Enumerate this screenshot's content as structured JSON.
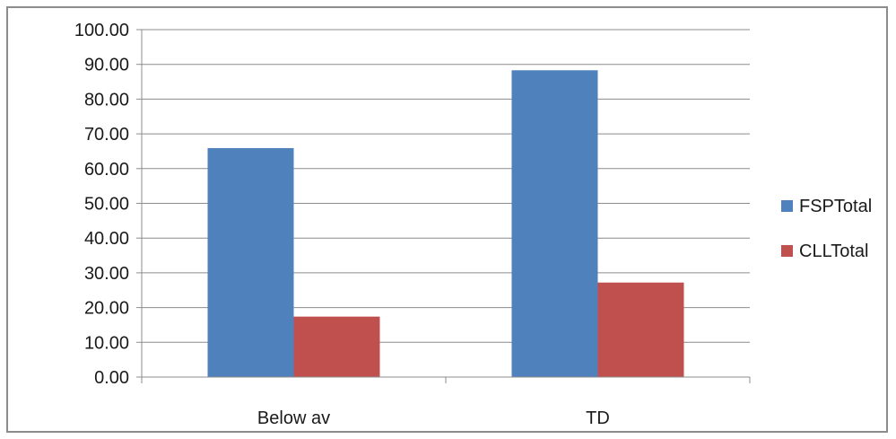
{
  "chart_data": {
    "type": "bar",
    "categories": [
      "Below av",
      "TD"
    ],
    "series": [
      {
        "name": "FSPTotal",
        "values": [
          65.9,
          88.3
        ],
        "color": "#4f81bd"
      },
      {
        "name": "CLLTotal",
        "values": [
          17.4,
          27.2
        ],
        "color": "#c0504d"
      }
    ],
    "ylim": [
      0,
      100
    ],
    "yticks": [
      "0.00",
      "10.00",
      "20.00",
      "30.00",
      "40.00",
      "50.00",
      "60.00",
      "70.00",
      "80.00",
      "90.00",
      "100.00"
    ],
    "grid": true,
    "legend_position": "right"
  }
}
